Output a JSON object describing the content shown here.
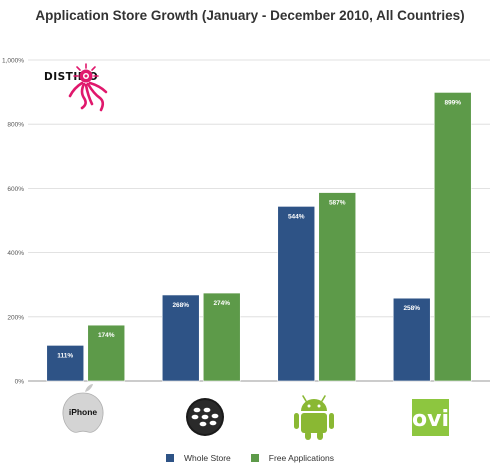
{
  "chart_data": {
    "type": "bar",
    "title": "Application Store Growth (January - December 2010, All Countries)",
    "categories": [
      "iPhone",
      "BlackBerry",
      "Android",
      "Ovi"
    ],
    "series": [
      {
        "name": "Whole Store",
        "color": "#2e5386",
        "values": [
          111,
          268,
          544,
          258
        ],
        "labels": [
          "111%",
          "268%",
          "544%",
          "258%"
        ]
      },
      {
        "name": "Free Applications",
        "color": "#5d9a49",
        "values": [
          174,
          274,
          587,
          899
        ],
        "labels": [
          "174%",
          "274%",
          "587%",
          "899%"
        ]
      }
    ],
    "ylim": [
      0,
      1000
    ],
    "yticks": [
      0,
      200,
      400,
      600,
      800,
      1000
    ],
    "ytick_labels": [
      "0%",
      "200%",
      "400%",
      "600%",
      "800%",
      "1,000%"
    ],
    "grid": true,
    "legend_position": "bottom",
    "xlabel": "",
    "ylabel": ""
  },
  "branding": {
    "distimo": "DISTIMO",
    "iphone": "iPhone",
    "ovi": "ovi",
    "icons": [
      "distimo-octopus-logo",
      "apple-logo",
      "blackberry-logo",
      "android-logo",
      "ovi-logo"
    ],
    "distimo_color": "#e0186c",
    "ovi_color": "#8dc63f"
  }
}
